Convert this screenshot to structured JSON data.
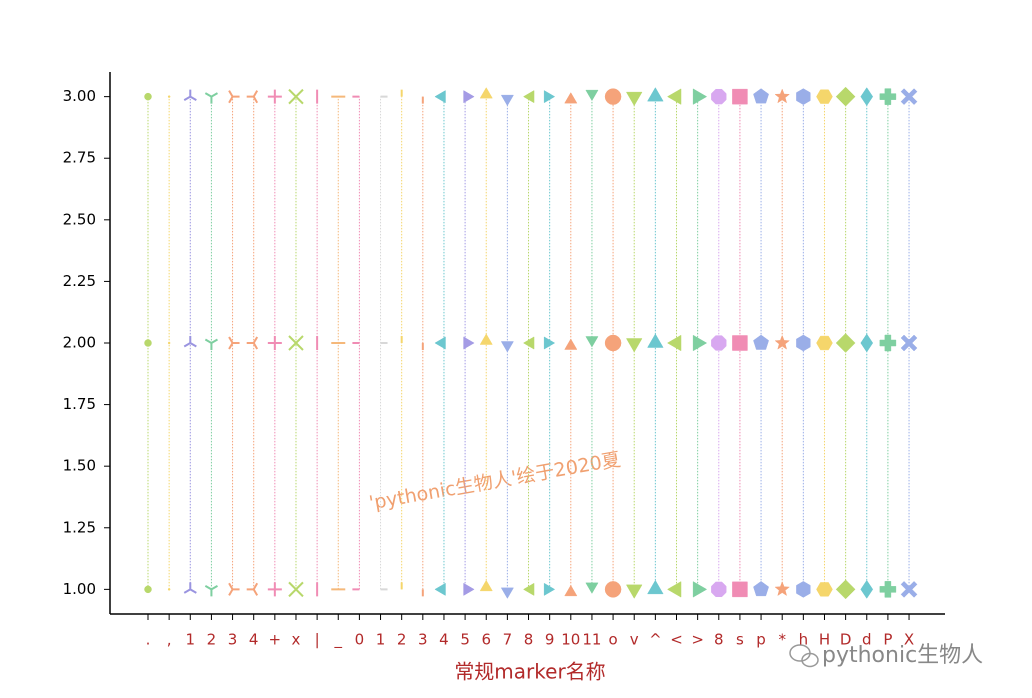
{
  "chart_data": {
    "type": "marker-strip",
    "xlabel": "常规marker名称",
    "watermark": "'pythonic生物人'绘于2020夏",
    "credit": "pythonic生物人",
    "categories": [
      ".",
      ",",
      "1",
      "2",
      "3",
      "4",
      "+",
      "x",
      "|",
      "_",
      "0",
      "1",
      "2",
      "3",
      "4",
      "5",
      "6",
      "7",
      "8",
      "9",
      "10",
      "11",
      "o",
      "v",
      "^",
      "<",
      ">",
      "8",
      "s",
      "p",
      "*",
      "h",
      "H",
      "D",
      "d",
      "P",
      "X"
    ],
    "series": [
      {
        "color": "#b8d86b",
        "values": [
          1,
          2,
          3
        ]
      },
      {
        "color": "#f5d66b",
        "values": [
          1,
          2,
          3
        ]
      },
      {
        "color": "#9a94e0",
        "values": [
          1,
          2,
          3
        ]
      },
      {
        "color": "#7ecfa0",
        "values": [
          1,
          2,
          3
        ]
      },
      {
        "color": "#f5a37a",
        "values": [
          1,
          2,
          3
        ]
      },
      {
        "color": "#f5a37a",
        "values": [
          1,
          2,
          3
        ]
      },
      {
        "color": "#f08cb4",
        "values": [
          1,
          2,
          3
        ]
      },
      {
        "color": "#b8d86b",
        "values": [
          1,
          2,
          3
        ]
      },
      {
        "color": "#f08cb4",
        "values": [
          1,
          2,
          3
        ]
      },
      {
        "color": "#f5b87a",
        "values": [
          1,
          2,
          3
        ]
      },
      {
        "color": "#f08cb4",
        "values": [
          1,
          2,
          3
        ]
      },
      {
        "color": "#d8d8d8",
        "values": [
          1,
          2,
          3
        ]
      },
      {
        "color": "#f5d66b",
        "values": [
          1,
          2,
          3
        ]
      },
      {
        "color": "#f5a37a",
        "values": [
          1,
          2,
          3
        ]
      },
      {
        "color": "#6cc7cf",
        "values": [
          1,
          2,
          3
        ]
      },
      {
        "color": "#a49be5",
        "values": [
          1,
          2,
          3
        ]
      },
      {
        "color": "#f5d66b",
        "values": [
          1,
          2,
          3
        ]
      },
      {
        "color": "#9aaee8",
        "values": [
          1,
          2,
          3
        ]
      },
      {
        "color": "#b8d86b",
        "values": [
          1,
          2,
          3
        ]
      },
      {
        "color": "#6cc7cf",
        "values": [
          1,
          2,
          3
        ]
      },
      {
        "color": "#f5a37a",
        "values": [
          1,
          2,
          3
        ]
      },
      {
        "color": "#7ecfa0",
        "values": [
          1,
          2,
          3
        ]
      },
      {
        "color": "#f5a37a",
        "values": [
          1,
          2,
          3
        ]
      },
      {
        "color": "#b8d86b",
        "values": [
          1,
          2,
          3
        ]
      },
      {
        "color": "#6cc7cf",
        "values": [
          1,
          2,
          3
        ]
      },
      {
        "color": "#b8d86b",
        "values": [
          1,
          2,
          3
        ]
      },
      {
        "color": "#7ecfa0",
        "values": [
          1,
          2,
          3
        ]
      },
      {
        "color": "#d8a8f0",
        "values": [
          1,
          2,
          3
        ]
      },
      {
        "color": "#f08cb4",
        "values": [
          1,
          2,
          3
        ]
      },
      {
        "color": "#9aaee8",
        "values": [
          1,
          2,
          3
        ]
      },
      {
        "color": "#f5a37a",
        "values": [
          1,
          2,
          3
        ]
      },
      {
        "color": "#9aaee8",
        "values": [
          1,
          2,
          3
        ]
      },
      {
        "color": "#f5d66b",
        "values": [
          1,
          2,
          3
        ]
      },
      {
        "color": "#b8d86b",
        "values": [
          1,
          2,
          3
        ]
      },
      {
        "color": "#6cc7cf",
        "values": [
          1,
          2,
          3
        ]
      },
      {
        "color": "#7ecfa0",
        "values": [
          1,
          2,
          3
        ]
      },
      {
        "color": "#9aaee8",
        "values": [
          1,
          2,
          3
        ]
      }
    ],
    "ylim": [
      0.9,
      3.1
    ],
    "yticks": [
      {
        "value": 1,
        "label": "1.00"
      },
      {
        "value": 1.25,
        "label": "1.25"
      },
      {
        "value": 1.5,
        "label": "1.50"
      },
      {
        "value": 1.75,
        "label": "1.75"
      },
      {
        "value": 2,
        "label": "2.00"
      },
      {
        "value": 2.25,
        "label": "2.25"
      },
      {
        "value": 2.5,
        "label": "2.50"
      },
      {
        "value": 2.75,
        "label": "2.75"
      },
      {
        "value": 3,
        "label": "3.00"
      }
    ]
  }
}
